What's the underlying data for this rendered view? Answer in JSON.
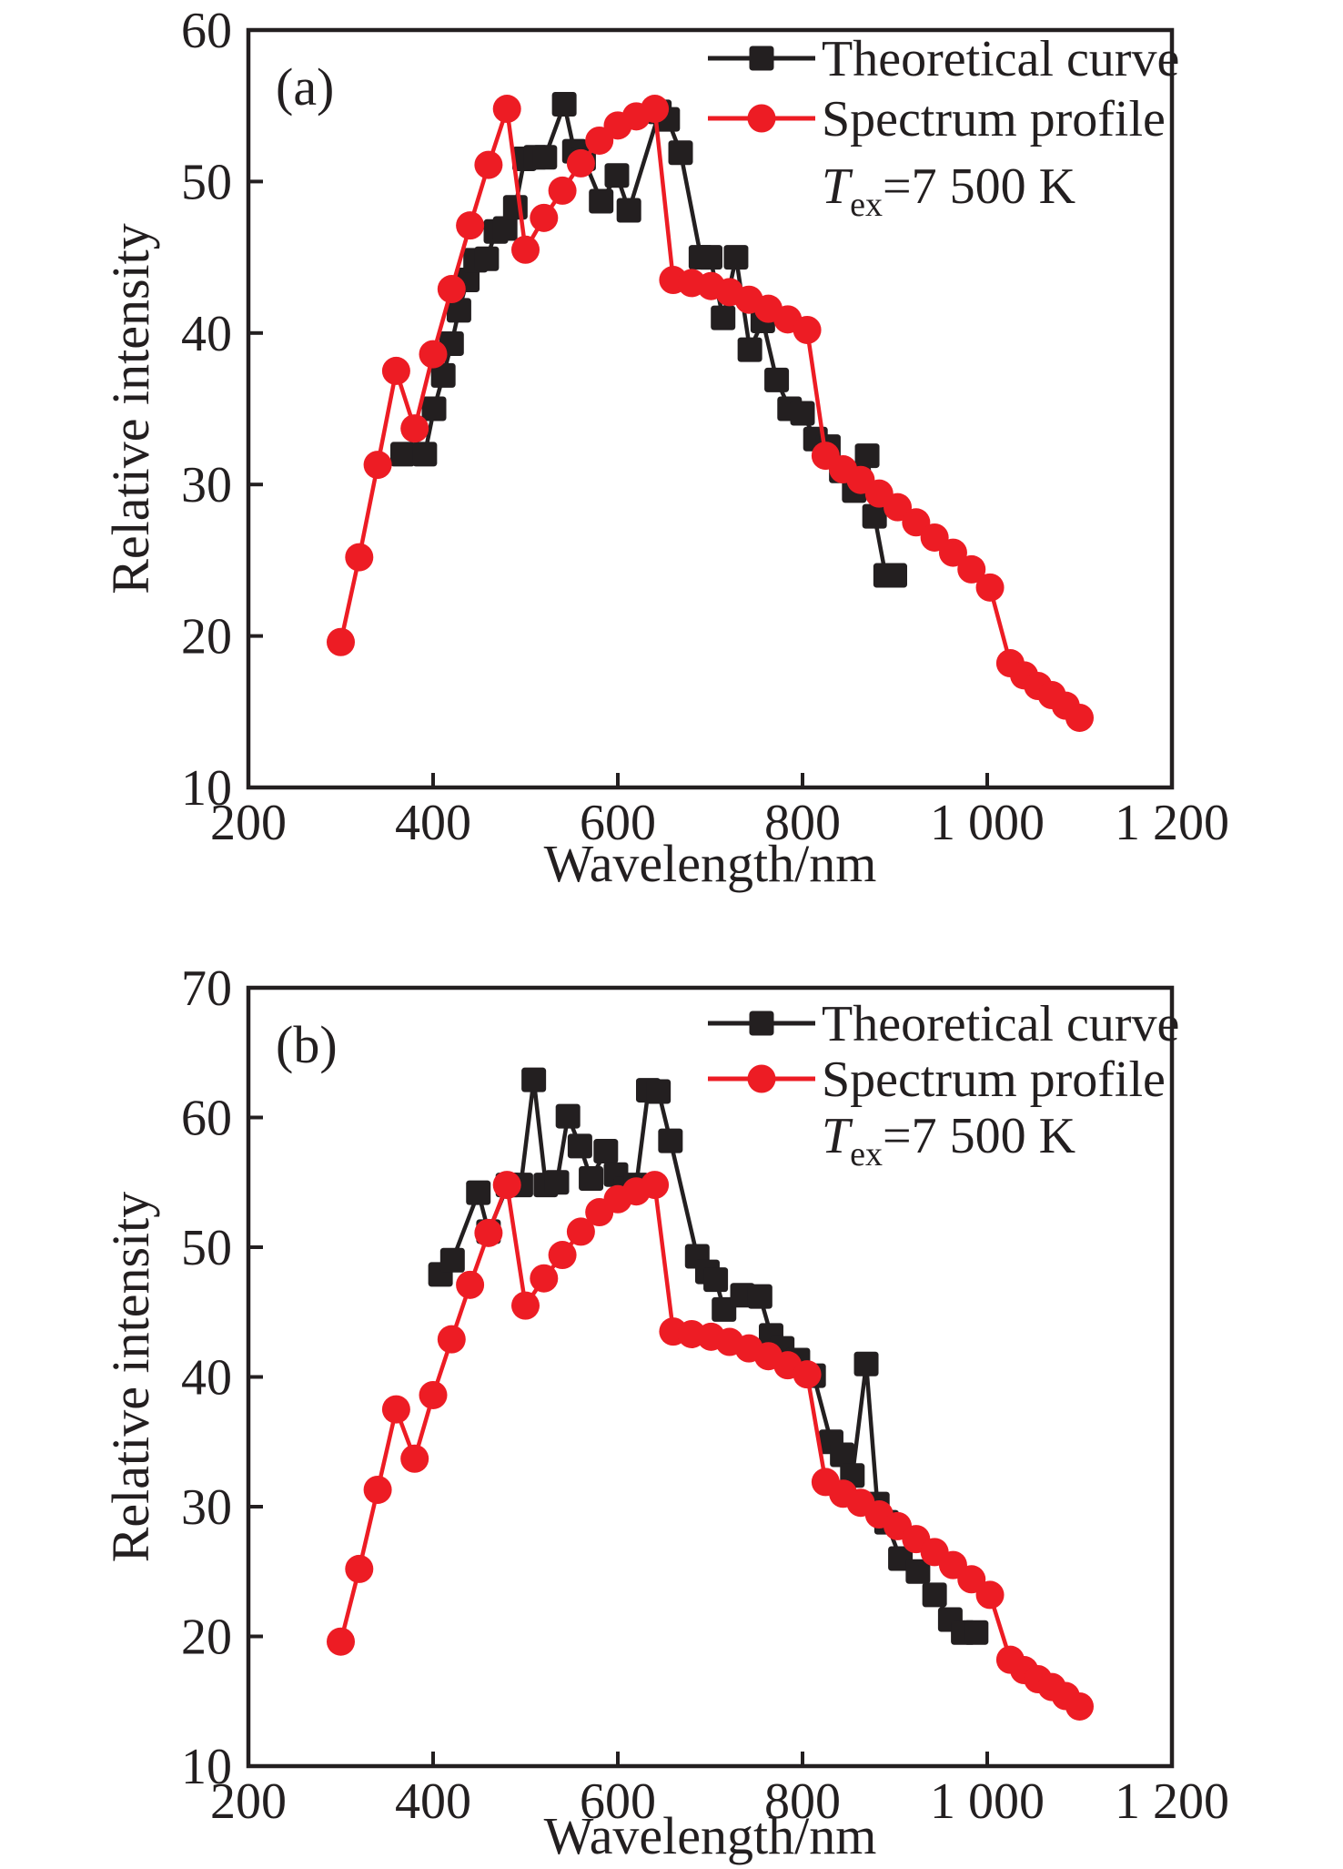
{
  "figure": {
    "background": "#ffffff",
    "axis_color": "#231f20"
  },
  "chart_data": [
    {
      "type": "line",
      "panel_label": "(a)",
      "xlabel": "Wavelength/nm",
      "ylabel": "Relative intensity",
      "xlim": [
        200,
        1200
      ],
      "ylim": [
        10,
        60
      ],
      "x_ticks": [
        200,
        400,
        600,
        800,
        1000,
        1200
      ],
      "x_tick_labels": [
        "200",
        "400",
        "600",
        "800",
        "1 000",
        "1 200"
      ],
      "y_ticks": [
        10,
        20,
        30,
        40,
        50,
        60
      ],
      "y_tick_labels": [
        "10",
        "20",
        "30",
        "40",
        "50",
        "60"
      ],
      "grid": false,
      "legend_position": "top-right",
      "annotation": {
        "var": "T",
        "sub": "ex",
        "rest": "=7 500 K"
      },
      "series": [
        {
          "name": "Theoretical curve",
          "color": "#231f20",
          "marker": "square",
          "x": [
            367,
            391,
            401,
            411,
            420,
            428,
            437,
            446,
            458,
            468,
            478,
            489,
            499,
            511,
            521,
            542,
            553,
            563,
            582,
            599,
            612,
            645,
            654,
            668,
            690,
            700,
            714,
            728,
            743,
            757,
            772,
            786,
            800,
            814,
            828,
            842,
            856,
            870,
            878,
            890,
            900
          ],
          "y": [
            32.0,
            32.0,
            35.0,
            37.2,
            39.3,
            41.5,
            43.5,
            44.8,
            44.9,
            46.7,
            46.9,
            48.3,
            51.5,
            51.6,
            51.6,
            55.1,
            52.0,
            51.5,
            48.7,
            50.4,
            48.1,
            54.6,
            54.1,
            51.9,
            45.0,
            45.0,
            41.0,
            45.0,
            38.9,
            40.8,
            36.9,
            35.0,
            34.7,
            33.0,
            32.5,
            30.9,
            29.6,
            31.9,
            27.9,
            24.0,
            24.0
          ]
        },
        {
          "name": "Spectrum profile",
          "color": "#ed1c24",
          "marker": "circle",
          "x": [
            300,
            320,
            340,
            360,
            380,
            400,
            420,
            440,
            460,
            480,
            500,
            520,
            540,
            560,
            580,
            600,
            620,
            640,
            660,
            680,
            701,
            721,
            742,
            763,
            784,
            805,
            825,
            844,
            863,
            883,
            903,
            923,
            943,
            963,
            983,
            1003,
            1025,
            1040,
            1055,
            1070,
            1085,
            1100
          ],
          "y": [
            19.6,
            25.2,
            31.3,
            37.5,
            33.7,
            38.6,
            42.9,
            47.1,
            51.1,
            54.8,
            45.5,
            47.6,
            49.4,
            51.2,
            52.7,
            53.7,
            54.3,
            54.8,
            43.5,
            43.3,
            43.1,
            42.7,
            42.2,
            41.6,
            40.9,
            40.2,
            31.9,
            31.0,
            30.3,
            29.4,
            28.5,
            27.5,
            26.5,
            25.5,
            24.4,
            23.2,
            18.2,
            17.4,
            16.7,
            16.1,
            15.4,
            14.6
          ]
        }
      ]
    },
    {
      "type": "line",
      "panel_label": "(b)",
      "xlabel": "Wavelength/nm",
      "ylabel": "Relative intensity",
      "xlim": [
        200,
        1200
      ],
      "ylim": [
        10,
        70
      ],
      "x_ticks": [
        200,
        400,
        600,
        800,
        1000,
        1200
      ],
      "x_tick_labels": [
        "200",
        "400",
        "600",
        "800",
        "1 000",
        "1 200"
      ],
      "y_ticks": [
        10,
        20,
        30,
        40,
        50,
        60,
        70
      ],
      "y_tick_labels": [
        "10",
        "20",
        "30",
        "40",
        "50",
        "60",
        "70"
      ],
      "grid": false,
      "legend_position": "top-right",
      "annotation": {
        "var": "T",
        "sub": "ex",
        "rest": "=7 500 K"
      },
      "series": [
        {
          "name": "Theoretical curve",
          "color": "#231f20",
          "marker": "square",
          "x": [
            408,
            421,
            449,
            460,
            481,
            495,
            509,
            522,
            534,
            546,
            559,
            571,
            587,
            598,
            609,
            620,
            633,
            644,
            657,
            686,
            697,
            706,
            715,
            735,
            754,
            766,
            778,
            795,
            812,
            831,
            843,
            854,
            869,
            881,
            891,
            906,
            925,
            943,
            960,
            974,
            988
          ],
          "y": [
            47.9,
            49.0,
            54.2,
            51.2,
            54.8,
            54.8,
            62.9,
            54.8,
            55.0,
            60.1,
            57.8,
            55.3,
            57.4,
            55.6,
            54.5,
            54.8,
            62.1,
            62.0,
            58.2,
            49.3,
            48.1,
            47.5,
            45.2,
            46.3,
            46.2,
            43.2,
            42.2,
            41.3,
            40.1,
            35.0,
            34.0,
            32.4,
            41.0,
            30.2,
            28.8,
            26.0,
            25.0,
            23.2,
            21.3,
            20.3,
            20.3
          ]
        },
        {
          "name": "Spectrum profile",
          "color": "#ed1c24",
          "marker": "circle",
          "x": [
            300,
            320,
            340,
            360,
            380,
            400,
            420,
            440,
            460,
            480,
            500,
            520,
            540,
            560,
            580,
            600,
            620,
            640,
            660,
            680,
            701,
            721,
            742,
            763,
            784,
            805,
            825,
            844,
            863,
            883,
            903,
            923,
            943,
            963,
            983,
            1003,
            1025,
            1040,
            1055,
            1070,
            1085,
            1100
          ],
          "y": [
            19.6,
            25.2,
            31.3,
            37.5,
            33.7,
            38.6,
            42.9,
            47.1,
            51.1,
            54.8,
            45.5,
            47.6,
            49.4,
            51.2,
            52.7,
            53.7,
            54.3,
            54.8,
            43.5,
            43.3,
            43.1,
            42.7,
            42.2,
            41.6,
            40.9,
            40.2,
            31.9,
            31.0,
            30.3,
            29.4,
            28.5,
            27.5,
            26.5,
            25.5,
            24.4,
            23.2,
            18.2,
            17.4,
            16.7,
            16.1,
            15.4,
            14.6
          ]
        }
      ]
    }
  ]
}
